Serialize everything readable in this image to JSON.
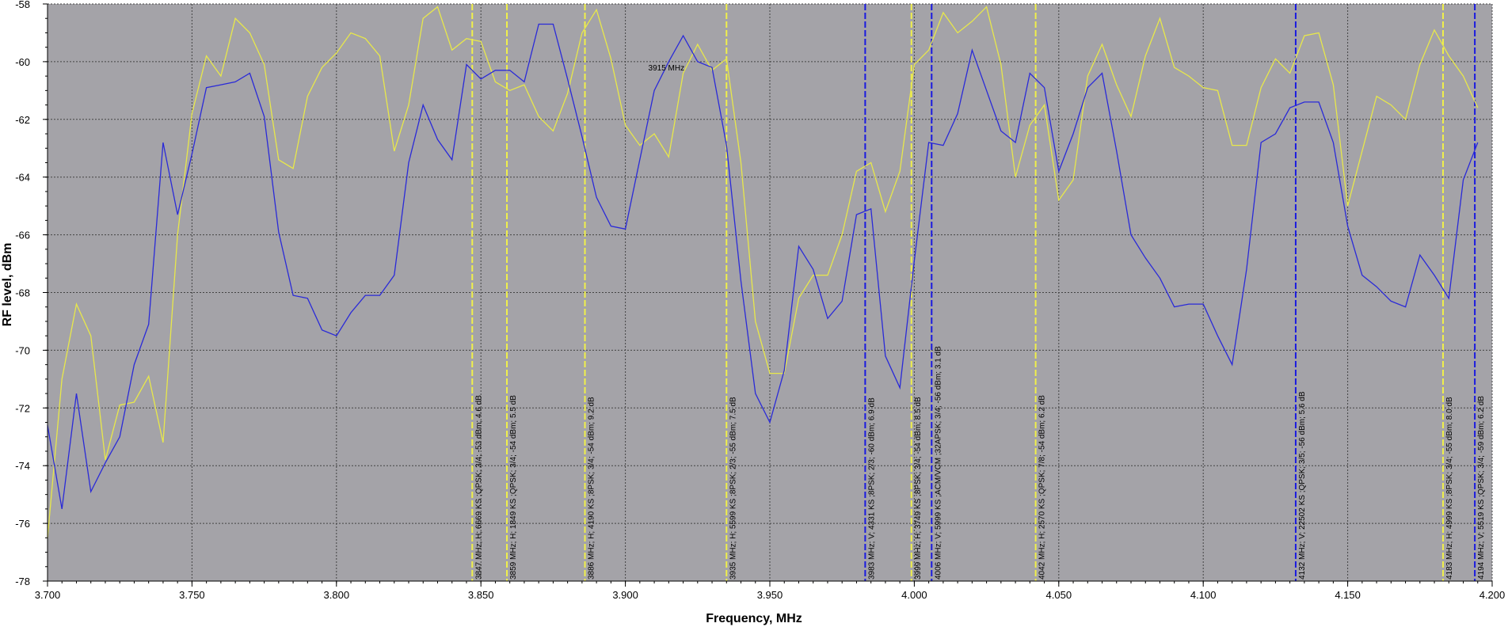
{
  "colors": {
    "plot_bg": "#a4a3a8",
    "grid": "#444444",
    "yellow_series": "#e8e84a",
    "blue_series": "#2a2ad8",
    "yellow_marker": "#f0f04a",
    "blue_marker": "#1a1ae0"
  },
  "chart_data": {
    "type": "line",
    "xlabel": "Frequency, MHz",
    "ylabel": "RF level, dBm",
    "xlim": [
      3.7,
      4.2
    ],
    "ylim": [
      -78,
      -58
    ],
    "x_ticks": [
      "3.700",
      "3.750",
      "3.800",
      "3.850",
      "3.900",
      "3.950",
      "4.000",
      "4.050",
      "4.100",
      "4.150",
      "4.200"
    ],
    "y_ticks": [
      "-58",
      "-60",
      "-62",
      "-64",
      "-66",
      "-68",
      "-70",
      "-72",
      "-74",
      "-76",
      "-78"
    ],
    "grid": true,
    "cursor_label": "3915 MHz",
    "cursor_freq": 3.915,
    "cursor_level": -60.2,
    "series": [
      {
        "color_key": "yellow_series",
        "x": [
          3.7,
          3.705,
          3.71,
          3.715,
          3.72,
          3.725,
          3.73,
          3.735,
          3.74,
          3.745,
          3.75,
          3.755,
          3.76,
          3.765,
          3.77,
          3.775,
          3.78,
          3.785,
          3.79,
          3.795,
          3.8,
          3.805,
          3.81,
          3.815,
          3.82,
          3.825,
          3.83,
          3.835,
          3.84,
          3.845,
          3.85,
          3.855,
          3.86,
          3.865,
          3.87,
          3.875,
          3.88,
          3.885,
          3.89,
          3.895,
          3.9,
          3.905,
          3.91,
          3.915,
          3.92,
          3.925,
          3.93,
          3.935,
          3.94,
          3.945,
          3.95,
          3.955,
          3.96,
          3.965,
          3.97,
          3.975,
          3.98,
          3.985,
          3.99,
          3.995,
          4.0,
          4.005,
          4.01,
          4.015,
          4.02,
          4.025,
          4.03,
          4.035,
          4.04,
          4.045,
          4.05,
          4.055,
          4.06,
          4.065,
          4.07,
          4.075,
          4.08,
          4.085,
          4.09,
          4.095,
          4.1,
          4.105,
          4.11,
          4.115,
          4.12,
          4.125,
          4.13,
          4.135,
          4.14,
          4.145,
          4.15,
          4.155,
          4.16,
          4.165,
          4.17,
          4.175,
          4.18,
          4.185,
          4.19,
          4.195
        ],
        "y": [
          -76.5,
          -71.0,
          -68.4,
          -69.5,
          -73.8,
          -71.9,
          -71.8,
          -70.9,
          -73.2,
          -66.0,
          -61.8,
          -59.8,
          -60.5,
          -58.5,
          -59.0,
          -60.1,
          -63.4,
          -63.7,
          -61.2,
          -60.2,
          -59.7,
          -59.0,
          -59.2,
          -59.8,
          -63.1,
          -61.5,
          -58.5,
          -58.1,
          -59.6,
          -59.2,
          -59.3,
          -60.7,
          -61.0,
          -60.8,
          -61.9,
          -62.4,
          -61.1,
          -59.0,
          -58.2,
          -59.9,
          -62.2,
          -62.9,
          -62.5,
          -63.3,
          -60.4,
          -59.4,
          -60.3,
          -59.9,
          -63.5,
          -69.0,
          -70.8,
          -70.8,
          -68.2,
          -67.4,
          -67.4,
          -66.0,
          -63.8,
          -63.5,
          -65.2,
          -63.8,
          -60.1,
          -59.6,
          -58.3,
          -59.0,
          -58.6,
          -58.1,
          -60.1,
          -64.0,
          -62.2,
          -61.5,
          -64.8,
          -64.1,
          -60.5,
          -59.4,
          -60.8,
          -61.9,
          -59.8,
          -58.5,
          -60.2,
          -60.5,
          -60.9,
          -61.0,
          -62.9,
          -62.9,
          -60.9,
          -59.9,
          -60.4,
          -59.1,
          -59.0,
          -60.8,
          -65.0,
          -63.1,
          -61.2,
          -61.5,
          -62.0,
          -60.1,
          -58.9,
          -59.8,
          -60.5,
          -61.6
        ]
      },
      {
        "color_key": "blue_series",
        "x": [
          3.7,
          3.705,
          3.71,
          3.715,
          3.72,
          3.725,
          3.73,
          3.735,
          3.74,
          3.745,
          3.75,
          3.755,
          3.76,
          3.765,
          3.77,
          3.775,
          3.78,
          3.785,
          3.79,
          3.795,
          3.8,
          3.805,
          3.81,
          3.815,
          3.82,
          3.825,
          3.83,
          3.835,
          3.84,
          3.845,
          3.85,
          3.855,
          3.86,
          3.865,
          3.87,
          3.875,
          3.88,
          3.885,
          3.89,
          3.895,
          3.9,
          3.905,
          3.91,
          3.915,
          3.92,
          3.925,
          3.93,
          3.935,
          3.94,
          3.945,
          3.95,
          3.955,
          3.96,
          3.965,
          3.97,
          3.975,
          3.98,
          3.985,
          3.99,
          3.995,
          4.0,
          4.005,
          4.01,
          4.015,
          4.02,
          4.025,
          4.03,
          4.035,
          4.04,
          4.045,
          4.05,
          4.055,
          4.06,
          4.065,
          4.07,
          4.075,
          4.08,
          4.085,
          4.09,
          4.095,
          4.1,
          4.105,
          4.11,
          4.115,
          4.12,
          4.125,
          4.13,
          4.135,
          4.14,
          4.145,
          4.15,
          4.155,
          4.16,
          4.165,
          4.17,
          4.175,
          4.18,
          4.185,
          4.19,
          4.195
        ],
        "y": [
          -72.6,
          -75.5,
          -71.5,
          -74.9,
          -73.9,
          -73.0,
          -70.5,
          -69.1,
          -62.8,
          -65.3,
          -63.2,
          -60.9,
          -60.8,
          -60.7,
          -60.4,
          -61.9,
          -65.9,
          -68.1,
          -68.2,
          -69.3,
          -69.5,
          -68.7,
          -68.1,
          -68.1,
          -67.4,
          -63.5,
          -61.5,
          -62.7,
          -63.4,
          -60.1,
          -60.6,
          -60.3,
          -60.3,
          -60.7,
          -58.7,
          -58.7,
          -60.6,
          -62.6,
          -64.7,
          -65.7,
          -65.8,
          -63.4,
          -61.0,
          -60.0,
          -59.1,
          -60.0,
          -60.2,
          -62.9,
          -67.6,
          -71.5,
          -72.5,
          -70.7,
          -66.4,
          -67.2,
          -68.9,
          -68.3,
          -65.3,
          -65.1,
          -70.2,
          -71.3,
          -66.9,
          -62.8,
          -62.9,
          -61.8,
          -59.6,
          -61.0,
          -62.4,
          -62.8,
          -60.4,
          -60.9,
          -63.8,
          -62.5,
          -60.9,
          -60.4,
          -63.1,
          -66.0,
          -66.8,
          -67.5,
          -68.5,
          -68.4,
          -68.4,
          -69.5,
          -70.5,
          -67.2,
          -62.8,
          -62.5,
          -61.6,
          -61.4,
          -61.4,
          -62.8,
          -65.7,
          -67.4,
          -67.8,
          -68.3,
          -68.5,
          -66.7,
          -67.4,
          -68.2,
          -64.1,
          -62.8
        ]
      }
    ],
    "markers": [
      {
        "freq": 3.847,
        "color_key": "yellow_marker",
        "label": "3847 MHz; H; 6669 KS ;QPSK; 3/4; -53 dBm; 4.6 dB"
      },
      {
        "freq": 3.859,
        "color_key": "yellow_marker",
        "label": "3859 MHz; H; 1849 KS ;QPSK; 3/4; -54 dBm; 5.5 dB"
      },
      {
        "freq": 3.886,
        "color_key": "yellow_marker",
        "label": "3886 MHz; H; 4190 KS ;8PSK; 3/4; -54 dBm; 9.2 dB"
      },
      {
        "freq": 3.935,
        "color_key": "yellow_marker",
        "label": "3935 MHz; H; 5599 KS ;8PSK; 2/3; -55 dBm; 7.5 dB"
      },
      {
        "freq": 3.983,
        "color_key": "blue_marker",
        "label": "3983 MHz; V; 4331 KS ;8PSK; 2/3; -60 dBm; 6.9 dB"
      },
      {
        "freq": 3.999,
        "color_key": "yellow_marker",
        "label": "3999 MHz; H; 3749 KS ;8PSK; 3/4; -54 dBm; 8.5 dB"
      },
      {
        "freq": 4.006,
        "color_key": "blue_marker",
        "label": "4006 MHz; V; 5999 KS ;ACM/VCM ;32APSK; 3/4; -56 dBm; 3.1 dB"
      },
      {
        "freq": 4.042,
        "color_key": "yellow_marker",
        "label": "4042 MHz; H; 2570 KS ;QPSK; 7/8; -54 dBm; 6.2 dB"
      },
      {
        "freq": 4.132,
        "color_key": "blue_marker",
        "label": "4132 MHz; V; 22502 KS ;QPSK; 3/5; -56 dBm; 5.6 dB"
      },
      {
        "freq": 4.183,
        "color_key": "yellow_marker",
        "label": "4183 MHz; H; 4999 KS ;8PSK; 3/4; -55 dBm; 8.0 dB"
      },
      {
        "freq": 4.194,
        "color_key": "blue_marker",
        "label": "4194 MHz; V; 5519 KS ;QPSK; 3/4; -59 dBm; 6.2 dB"
      }
    ]
  }
}
